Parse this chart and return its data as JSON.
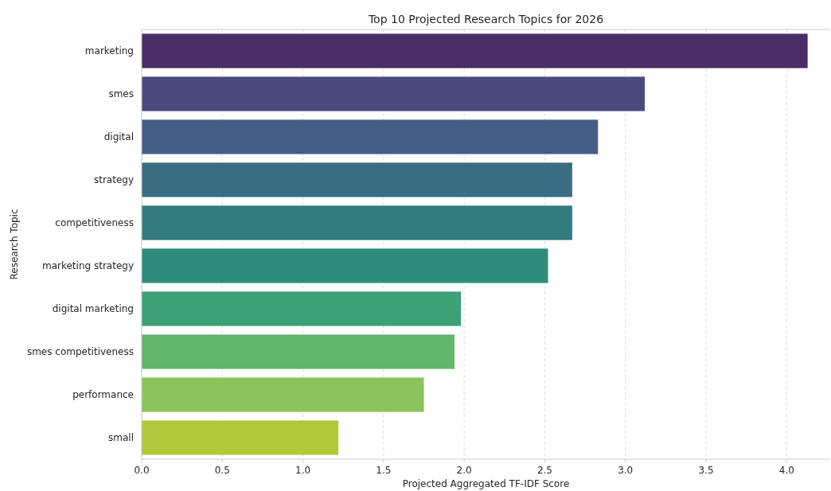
{
  "chart_data": {
    "type": "bar",
    "orientation": "horizontal",
    "title": "Top 10 Projected Research Topics for 2026",
    "xlabel": "Projected Aggregated TF-IDF Score",
    "ylabel": "Research Topic",
    "categories": [
      "marketing",
      "smes",
      "digital",
      "strategy",
      "competitiveness",
      "marketing strategy",
      "digital marketing",
      "smes competitiveness",
      "performance",
      "small"
    ],
    "values": [
      4.13,
      3.12,
      2.83,
      2.67,
      2.67,
      2.52,
      1.98,
      1.94,
      1.75,
      1.22
    ],
    "colors": [
      "#4a2c66",
      "#4a4a7e",
      "#445e85",
      "#3a6c82",
      "#347b80",
      "#2f8c7b",
      "#3ca176",
      "#62b56d",
      "#8bc45c",
      "#b1c83b"
    ],
    "xlim": [
      0,
      4.27
    ],
    "xticks": [
      {
        "value": 0,
        "label": "0.0"
      },
      {
        "value": 0.5,
        "label": "0.5"
      },
      {
        "value": 1,
        "label": "1.0"
      },
      {
        "value": 1.5,
        "label": "1.5"
      },
      {
        "value": 2,
        "label": "2.0"
      },
      {
        "value": 2.5,
        "label": "2.5"
      },
      {
        "value": 3,
        "label": "3.0"
      },
      {
        "value": 3.5,
        "label": "3.5"
      },
      {
        "value": 4,
        "label": "4.0"
      }
    ],
    "grid": "x",
    "line_style": "dashed"
  }
}
